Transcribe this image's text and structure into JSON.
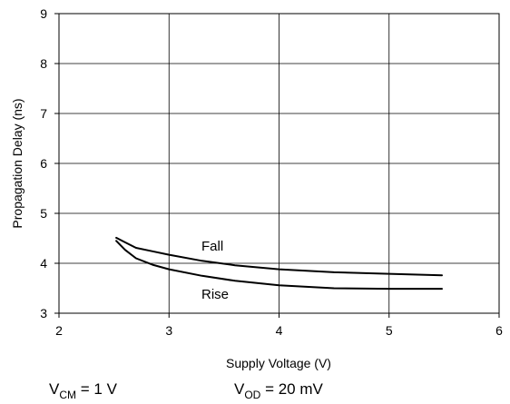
{
  "chart_data": {
    "type": "line",
    "xlabel": "Supply Voltage (V)",
    "ylabel": "Propagation Delay (ns)",
    "xlim": [
      2,
      6
    ],
    "ylim": [
      3,
      9
    ],
    "xticks": [
      2,
      3,
      4,
      5,
      6
    ],
    "yticks": [
      3,
      4,
      5,
      6,
      7,
      8,
      9
    ],
    "grid": true,
    "line_color": "#000000",
    "series": [
      {
        "name": "Fall",
        "x": [
          2.52,
          2.6,
          2.7,
          2.85,
          3.0,
          3.3,
          3.6,
          4.0,
          4.5,
          5.0,
          5.48
        ],
        "y": [
          4.51,
          4.42,
          4.31,
          4.24,
          4.17,
          4.05,
          3.96,
          3.88,
          3.82,
          3.79,
          3.76
        ]
      },
      {
        "name": "Rise",
        "x": [
          2.52,
          2.6,
          2.7,
          2.85,
          3.0,
          3.3,
          3.6,
          4.0,
          4.5,
          5.0,
          5.48
        ],
        "y": [
          4.45,
          4.27,
          4.1,
          3.97,
          3.88,
          3.75,
          3.65,
          3.56,
          3.5,
          3.49,
          3.49
        ]
      }
    ],
    "annotations": {
      "vcm": {
        "prefix": "V",
        "sub": "CM",
        "suffix": " = 1 V"
      },
      "vod": {
        "prefix": "V",
        "sub": "OD",
        "suffix": " = 20 mV"
      }
    }
  }
}
